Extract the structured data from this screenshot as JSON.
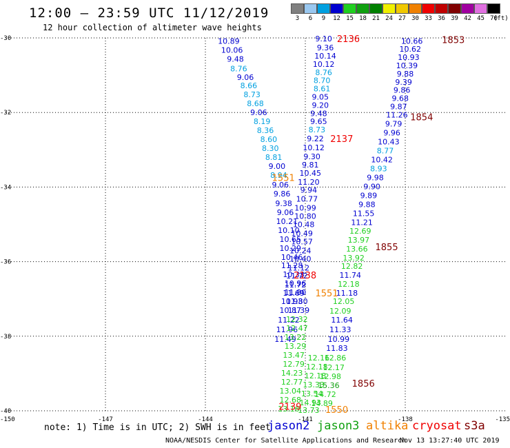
{
  "header": {
    "title": "12:00 — 23:59 UTC 11/12/2019",
    "subtitle": "12 hour collection of altimeter wave heights"
  },
  "colorbar": {
    "labels": [
      "3",
      "6",
      "9",
      "12",
      "15",
      "18",
      "21",
      "24",
      "27",
      "30",
      "33",
      "36",
      "39",
      "42",
      "45",
      "70"
    ],
    "colors": [
      "#808080",
      "#9ac8f0",
      "#00a0e0",
      "#0000d0",
      "#20d020",
      "#10a010",
      "#008000",
      "#f0f000",
      "#f0c800",
      "#f08000",
      "#f00000",
      "#c00000",
      "#800000",
      "#a000a0",
      "#e070e0",
      "#000000"
    ],
    "unit": "(ft)"
  },
  "chart_data": {
    "type": "scatter",
    "xlim": [
      -150,
      -135
    ],
    "ylim": [
      -40,
      -30
    ],
    "x_ticks": [
      "-150",
      "-147",
      "-144",
      "-141",
      "-138",
      "-135"
    ],
    "y_ticks": [
      "-30",
      "-32",
      "-34",
      "-36",
      "-38",
      "-40"
    ],
    "grid": "dotted",
    "tracks": [
      {
        "satellite": "jason2",
        "points": [
          {
            "lon": -143.3,
            "lat": -30.08,
            "v": "10.89"
          },
          {
            "lon": -143.2,
            "lat": -30.32,
            "v": "10.06"
          },
          {
            "lon": -143.1,
            "lat": -30.56,
            "v": "9.48"
          },
          {
            "lon": -143.0,
            "lat": -30.82,
            "v": "8.76"
          },
          {
            "lon": -142.8,
            "lat": -31.05,
            "v": "9.06"
          },
          {
            "lon": -142.7,
            "lat": -31.28,
            "v": "8.66"
          },
          {
            "lon": -142.6,
            "lat": -31.52,
            "v": "8.73"
          },
          {
            "lon": -142.5,
            "lat": -31.76,
            "v": "8.68"
          },
          {
            "lon": -142.4,
            "lat": -32.0,
            "v": "9.06"
          },
          {
            "lon": -142.3,
            "lat": -32.24,
            "v": "8.19"
          },
          {
            "lon": -142.2,
            "lat": -32.48,
            "v": "8.36"
          },
          {
            "lon": -142.1,
            "lat": -32.72,
            "v": "8.60"
          },
          {
            "lon": -142.05,
            "lat": -32.96,
            "v": "8.30"
          },
          {
            "lon": -141.95,
            "lat": -33.2,
            "v": "8.81"
          },
          {
            "lon": -141.85,
            "lat": -33.44,
            "v": "9.00"
          },
          {
            "lon": -141.8,
            "lat": -33.68,
            "v": "8.94"
          },
          {
            "lon": -141.75,
            "lat": -33.94,
            "v": "9.06"
          },
          {
            "lon": -141.7,
            "lat": -34.18,
            "v": "9.86"
          },
          {
            "lon": -141.65,
            "lat": -34.44,
            "v": "9.38"
          },
          {
            "lon": -141.6,
            "lat": -34.68,
            "v": "9.06"
          },
          {
            "lon": -141.55,
            "lat": -34.92,
            "v": "10.21"
          },
          {
            "lon": -141.5,
            "lat": -35.16,
            "v": "10.10"
          },
          {
            "lon": -141.45,
            "lat": -35.4,
            "v": "10.65"
          },
          {
            "lon": -141.45,
            "lat": -35.64,
            "v": "10.29"
          },
          {
            "lon": -141.4,
            "lat": -35.88,
            "v": "10.46"
          },
          {
            "lon": -141.4,
            "lat": -36.1,
            "v": "11.28"
          },
          {
            "lon": -141.35,
            "lat": -36.34,
            "v": "10.33"
          },
          {
            "lon": -141.3,
            "lat": -36.58,
            "v": "10.96"
          },
          {
            "lon": -141.3,
            "lat": -36.82,
            "v": "11.80"
          },
          {
            "lon": -141.25,
            "lat": -37.06,
            "v": "11.80"
          },
          {
            "lon": -141.2,
            "lat": -37.3,
            "v": "11.39"
          }
        ]
      },
      {
        "satellite": "jason2",
        "points": [
          {
            "lon": -140.45,
            "lat": -30.02,
            "v": "9.10"
          },
          {
            "lon": -140.4,
            "lat": -30.26,
            "v": "9.36"
          },
          {
            "lon": -140.4,
            "lat": -30.48,
            "v": "10.14"
          },
          {
            "lon": -140.45,
            "lat": -30.7,
            "v": "10.12"
          },
          {
            "lon": -140.45,
            "lat": -30.92,
            "v": "8.76"
          },
          {
            "lon": -140.5,
            "lat": -31.14,
            "v": "8.70"
          },
          {
            "lon": -140.5,
            "lat": -31.36,
            "v": "8.61"
          },
          {
            "lon": -140.55,
            "lat": -31.58,
            "v": "9.05"
          },
          {
            "lon": -140.55,
            "lat": -31.8,
            "v": "9.20"
          },
          {
            "lon": -140.6,
            "lat": -32.02,
            "v": "9.48"
          },
          {
            "lon": -140.6,
            "lat": -32.24,
            "v": "9.65"
          },
          {
            "lon": -140.65,
            "lat": -32.46,
            "v": "8.73"
          },
          {
            "lon": -140.7,
            "lat": -32.7,
            "v": "9.22"
          },
          {
            "lon": -140.75,
            "lat": -32.94,
            "v": "10.12"
          },
          {
            "lon": -140.8,
            "lat": -33.18,
            "v": "9.30"
          },
          {
            "lon": -140.85,
            "lat": -33.4,
            "v": "9.81"
          },
          {
            "lon": -140.85,
            "lat": -33.62,
            "v": "10.45"
          },
          {
            "lon": -140.9,
            "lat": -33.86,
            "v": "11.20"
          },
          {
            "lon": -140.9,
            "lat": -34.08,
            "v": "9.94"
          },
          {
            "lon": -140.95,
            "lat": -34.32,
            "v": "10.77"
          },
          {
            "lon": -141.0,
            "lat": -34.56,
            "v": "10.99"
          },
          {
            "lon": -141.0,
            "lat": -34.78,
            "v": "10.80"
          },
          {
            "lon": -141.05,
            "lat": -35.0,
            "v": "10.48"
          },
          {
            "lon": -141.1,
            "lat": -35.24,
            "v": "10.49"
          },
          {
            "lon": -141.1,
            "lat": -35.46,
            "v": "10.57"
          },
          {
            "lon": -141.15,
            "lat": -35.7,
            "v": "10.24"
          },
          {
            "lon": -141.15,
            "lat": -35.92,
            "v": "10.40"
          },
          {
            "lon": -141.2,
            "lat": -36.16,
            "v": "11.12"
          },
          {
            "lon": -141.25,
            "lat": -36.38,
            "v": "11.72"
          },
          {
            "lon": -141.3,
            "lat": -36.62,
            "v": "11.72"
          },
          {
            "lon": -141.35,
            "lat": -36.84,
            "v": "11.69"
          },
          {
            "lon": -141.4,
            "lat": -37.06,
            "v": "10.93"
          },
          {
            "lon": -141.45,
            "lat": -37.3,
            "v": "10.87"
          },
          {
            "lon": -141.5,
            "lat": -37.56,
            "v": "11.22"
          },
          {
            "lon": -141.55,
            "lat": -37.82,
            "v": "11.96"
          },
          {
            "lon": -141.6,
            "lat": -38.08,
            "v": "11.49"
          }
        ]
      },
      {
        "satellite": "jason2",
        "points": [
          {
            "lon": -137.8,
            "lat": -30.08,
            "v": "10.66"
          },
          {
            "lon": -137.85,
            "lat": -30.3,
            "v": "10.62"
          },
          {
            "lon": -137.9,
            "lat": -30.52,
            "v": "10.93"
          },
          {
            "lon": -137.95,
            "lat": -30.74,
            "v": "10.39"
          },
          {
            "lon": -138.0,
            "lat": -30.96,
            "v": "9.88"
          },
          {
            "lon": -138.05,
            "lat": -31.18,
            "v": "9.39"
          },
          {
            "lon": -138.1,
            "lat": -31.4,
            "v": "9.86"
          },
          {
            "lon": -138.15,
            "lat": -31.62,
            "v": "9.68"
          },
          {
            "lon": -138.2,
            "lat": -31.84,
            "v": "9.87"
          },
          {
            "lon": -138.25,
            "lat": -32.06,
            "v": "11.26"
          },
          {
            "lon": -138.35,
            "lat": -32.3,
            "v": "9.79"
          },
          {
            "lon": -138.4,
            "lat": -32.54,
            "v": "9.96"
          },
          {
            "lon": -138.5,
            "lat": -32.78,
            "v": "10.43"
          },
          {
            "lon": -138.6,
            "lat": -33.02,
            "v": "8.77"
          },
          {
            "lon": -138.7,
            "lat": -33.26,
            "v": "10.42"
          },
          {
            "lon": -138.8,
            "lat": -33.5,
            "v": "8.93"
          },
          {
            "lon": -138.9,
            "lat": -33.74,
            "v": "9.98"
          },
          {
            "lon": -139.0,
            "lat": -33.98,
            "v": "9.90"
          },
          {
            "lon": -139.1,
            "lat": -34.22,
            "v": "9.89"
          },
          {
            "lon": -139.15,
            "lat": -34.46,
            "v": "9.88"
          },
          {
            "lon": -139.25,
            "lat": -34.7,
            "v": "11.55"
          },
          {
            "lon": -139.3,
            "lat": -34.94,
            "v": "11.21"
          }
        ]
      },
      {
        "satellite": "jason3",
        "points": [
          {
            "lon": -139.35,
            "lat": -35.18,
            "v": "12.69"
          },
          {
            "lon": -139.4,
            "lat": -35.42,
            "v": "13.97"
          },
          {
            "lon": -139.45,
            "lat": -35.66,
            "v": "13.66"
          },
          {
            "lon": -139.55,
            "lat": -35.9,
            "v": "13.92"
          },
          {
            "lon": -139.6,
            "lat": -36.12,
            "v": "12.82"
          }
        ]
      },
      {
        "satellite": "jason2",
        "points": [
          {
            "lon": -139.65,
            "lat": -36.36,
            "v": "11.74"
          }
        ]
      },
      {
        "satellite": "jason3",
        "points": [
          {
            "lon": -139.7,
            "lat": -36.6,
            "v": "12.18"
          }
        ]
      },
      {
        "satellite": "jason2",
        "points": [
          {
            "lon": -139.75,
            "lat": -36.84,
            "v": "11.18"
          }
        ]
      },
      {
        "satellite": "jason3",
        "points": [
          {
            "lon": -139.85,
            "lat": -37.06,
            "v": "12.05"
          },
          {
            "lon": -139.95,
            "lat": -37.32,
            "v": "12.09"
          }
        ]
      },
      {
        "satellite": "jason2",
        "points": [
          {
            "lon": -139.9,
            "lat": -37.56,
            "v": "11.64"
          },
          {
            "lon": -139.95,
            "lat": -37.82,
            "v": "11.33"
          },
          {
            "lon": -140.0,
            "lat": -38.08,
            "v": "10.99"
          },
          {
            "lon": -140.05,
            "lat": -38.32,
            "v": "11.83"
          }
        ]
      },
      {
        "satellite": "jason3",
        "points": [
          {
            "lon": -140.1,
            "lat": -38.58,
            "v": "12.86"
          },
          {
            "lon": -140.15,
            "lat": -38.84,
            "v": "12.17"
          },
          {
            "lon": -140.25,
            "lat": -39.08,
            "v": "12.98"
          },
          {
            "lon": -140.3,
            "lat": -39.32,
            "v": "15.36"
          },
          {
            "lon": -140.4,
            "lat": -39.56,
            "v": "14.72"
          },
          {
            "lon": -140.5,
            "lat": -39.8,
            "v": "14.89"
          },
          {
            "lon": -141.25,
            "lat": -37.54,
            "v": "12.32"
          },
          {
            "lon": -141.25,
            "lat": -37.78,
            "v": "12.47"
          },
          {
            "lon": -141.3,
            "lat": -38.02,
            "v": "13.22"
          },
          {
            "lon": -141.3,
            "lat": -38.26,
            "v": "13.29"
          },
          {
            "lon": -141.35,
            "lat": -38.5,
            "v": "13.47"
          },
          {
            "lon": -141.35,
            "lat": -38.74,
            "v": "12.79"
          },
          {
            "lon": -141.4,
            "lat": -38.98,
            "v": "14.23"
          },
          {
            "lon": -141.4,
            "lat": -39.22,
            "v": "12.77"
          },
          {
            "lon": -141.45,
            "lat": -39.46,
            "v": "13.04"
          },
          {
            "lon": -141.45,
            "lat": -39.7,
            "v": "12.68"
          },
          {
            "lon": -141.5,
            "lat": -39.94,
            "v": "13.16"
          },
          {
            "lon": -140.6,
            "lat": -38.58,
            "v": "12.16"
          },
          {
            "lon": -140.65,
            "lat": -38.82,
            "v": "12.18"
          },
          {
            "lon": -140.7,
            "lat": -39.06,
            "v": "12.18"
          },
          {
            "lon": -140.75,
            "lat": -39.3,
            "v": "13.33"
          },
          {
            "lon": -140.8,
            "lat": -39.54,
            "v": "13.54"
          },
          {
            "lon": -140.85,
            "lat": -39.78,
            "v": "14.93"
          },
          {
            "lon": -140.9,
            "lat": -39.98,
            "v": "13.73"
          }
        ]
      }
    ],
    "pass_times": [
      {
        "label": "2136",
        "satellite": "cryosat",
        "lon": -140.05,
        "lat": -30.02
      },
      {
        "label": "2137",
        "satellite": "cryosat",
        "lon": -140.25,
        "lat": -32.7
      },
      {
        "label": "1551",
        "satellite": "altika",
        "lon": -142.0,
        "lat": -33.74
      },
      {
        "label": "2138",
        "satellite": "cryosat",
        "lon": -141.35,
        "lat": -36.36
      },
      {
        "label": "1551",
        "satellite": "altika",
        "lon": -140.7,
        "lat": -36.84
      },
      {
        "label": "2139",
        "satellite": "cryosat",
        "lon": -141.8,
        "lat": -39.88
      },
      {
        "label": "1550",
        "satellite": "altika",
        "lon": -140.4,
        "lat": -39.96
      },
      {
        "label": "1853",
        "satellite": "s3a",
        "lon": -136.9,
        "lat": -30.05
      },
      {
        "label": "1854",
        "satellite": "s3a",
        "lon": -137.85,
        "lat": -32.12
      },
      {
        "label": "1855",
        "satellite": "s3a",
        "lon": -138.9,
        "lat": -35.6
      },
      {
        "label": "1856",
        "satellite": "s3a",
        "lon": -139.6,
        "lat": -39.26
      }
    ]
  },
  "footer": {
    "note": "note: 1) Time is in UTC; 2) SWH is in feet",
    "legend": [
      {
        "name": "jason2",
        "color": "#0000d0"
      },
      {
        "name": "jason3",
        "color": "#10a010"
      },
      {
        "name": "altika",
        "color": "#f08000"
      },
      {
        "name": "cryosat",
        "color": "#f00000"
      },
      {
        "name": "s3a",
        "color": "#800000"
      }
    ],
    "credit": "NOAA/NESDIS Center for Satellite Applications and Research",
    "timestamp": "Nov 13 13:27:40 UTC 2019"
  }
}
